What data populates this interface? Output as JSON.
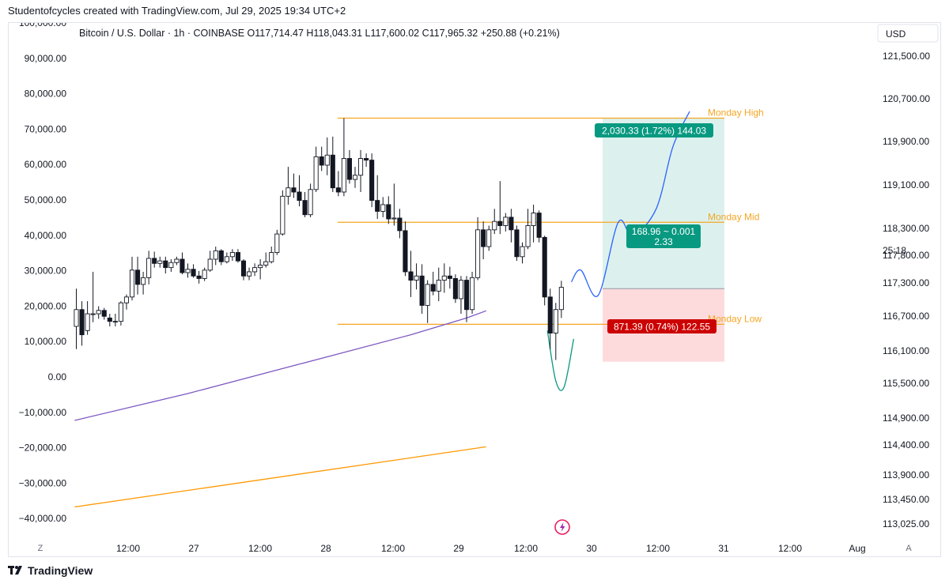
{
  "header": {
    "caption": "Studentofcycles created with TradingView.com, Jul 29, 2025 19:34 UTC+2"
  },
  "footer": {
    "brand": "TradingView"
  },
  "chart_data": {
    "type": "candlestick",
    "symbol_line": "Bitcoin / U.S. Dollar · 1h · COINBASE  O117,714.47  H118,043.31  L117,600.02  C117,965.32  +250.88 (+0.21%)",
    "currency": "USD",
    "countdown": "25:18",
    "left_axis": {
      "ticks": [
        "100,000.00",
        "90,000.00",
        "80,000.00",
        "70,000.00",
        "60,000.00",
        "50,000.00",
        "40,000.00",
        "30,000.00",
        "20,000.00",
        "10,000.00",
        "0.00",
        "−10,000.00",
        "−20,000.00",
        "−30,000.00",
        "−40,000.00"
      ]
    },
    "right_axis": {
      "ticks": [
        "121,500.00",
        "120,700.00",
        "119,900.00",
        "119,100.00",
        "118,300.00",
        "117,800.00",
        "117,300.00",
        "116,700.00",
        "116,100.00",
        "115,500.00",
        "114,900.00",
        "114,400.00",
        "113,900.00",
        "113,450.00",
        "113,025.00"
      ]
    },
    "x_axis": {
      "ticks": [
        "12:00",
        "27",
        "12:00",
        "28",
        "12:00",
        "29",
        "12:00",
        "30",
        "12:00",
        "31",
        "12:00",
        "Aug"
      ],
      "tz_button": "Z",
      "auto_button": "A"
    },
    "levels": [
      {
        "label": "Monday High",
        "price": 119980,
        "color": "#f5a623"
      },
      {
        "label": "Monday Mid",
        "price": 118740,
        "color": "#f5a623"
      },
      {
        "label": "Monday Low",
        "price": 117525,
        "color": "#f5a623"
      }
    ],
    "position": {
      "entry": 117950,
      "target": 119980,
      "stop": 117079,
      "target_label": "2,030.33 (1.72%) 144.03",
      "stop_label": "871.39 (0.74%) 122.55",
      "ratio_label_1": "168.96 ~ 0.001",
      "ratio_label_2": "2.33"
    },
    "candles": [
      {
        "o": 117500,
        "h": 117950,
        "l": 117230,
        "c": 117700
      },
      {
        "o": 117700,
        "h": 117800,
        "l": 117270,
        "c": 117400
      },
      {
        "o": 117450,
        "h": 117800,
        "l": 117400,
        "c": 117650
      },
      {
        "o": 117640,
        "h": 118150,
        "l": 117550,
        "c": 117650
      },
      {
        "o": 117650,
        "h": 117740,
        "l": 117590,
        "c": 117690
      },
      {
        "o": 117690,
        "h": 117720,
        "l": 117580,
        "c": 117620
      },
      {
        "o": 117600,
        "h": 117650,
        "l": 117500,
        "c": 117560
      },
      {
        "o": 117560,
        "h": 117650,
        "l": 117500,
        "c": 117560
      },
      {
        "o": 117560,
        "h": 117800,
        "l": 117510,
        "c": 117780
      },
      {
        "o": 117780,
        "h": 117880,
        "l": 117700,
        "c": 117850
      },
      {
        "o": 117850,
        "h": 118330,
        "l": 117810,
        "c": 118170
      },
      {
        "o": 118170,
        "h": 118330,
        "l": 117880,
        "c": 118000
      },
      {
        "o": 118000,
        "h": 118150,
        "l": 117880,
        "c": 118080
      },
      {
        "o": 118080,
        "h": 118400,
        "l": 118000,
        "c": 118310
      },
      {
        "o": 118310,
        "h": 118390,
        "l": 118200,
        "c": 118250
      },
      {
        "o": 118250,
        "h": 118330,
        "l": 118200,
        "c": 118280
      },
      {
        "o": 118280,
        "h": 118330,
        "l": 118130,
        "c": 118200
      },
      {
        "o": 118200,
        "h": 118300,
        "l": 118150,
        "c": 118260
      },
      {
        "o": 118260,
        "h": 118330,
        "l": 118230,
        "c": 118300
      },
      {
        "o": 118300,
        "h": 118380,
        "l": 118120,
        "c": 118140
      },
      {
        "o": 118140,
        "h": 118250,
        "l": 118080,
        "c": 118180
      },
      {
        "o": 118180,
        "h": 118240,
        "l": 118080,
        "c": 118100
      },
      {
        "o": 118100,
        "h": 118160,
        "l": 118010,
        "c": 118070
      },
      {
        "o": 118070,
        "h": 118200,
        "l": 118040,
        "c": 118170
      },
      {
        "o": 118170,
        "h": 118400,
        "l": 118150,
        "c": 118300
      },
      {
        "o": 118300,
        "h": 118450,
        "l": 118230,
        "c": 118400
      },
      {
        "o": 118400,
        "h": 118420,
        "l": 118230,
        "c": 118270
      },
      {
        "o": 118270,
        "h": 118380,
        "l": 118250,
        "c": 118330
      },
      {
        "o": 118330,
        "h": 118420,
        "l": 118280,
        "c": 118380
      },
      {
        "o": 118380,
        "h": 118420,
        "l": 118260,
        "c": 118280
      },
      {
        "o": 118280,
        "h": 118300,
        "l": 118050,
        "c": 118100
      },
      {
        "o": 118100,
        "h": 118200,
        "l": 118050,
        "c": 118150
      },
      {
        "o": 118150,
        "h": 118250,
        "l": 118100,
        "c": 118200
      },
      {
        "o": 118200,
        "h": 118300,
        "l": 118060,
        "c": 118230
      },
      {
        "o": 118230,
        "h": 118380,
        "l": 118200,
        "c": 118270
      },
      {
        "o": 118270,
        "h": 118450,
        "l": 118250,
        "c": 118380
      },
      {
        "o": 118380,
        "h": 118650,
        "l": 118350,
        "c": 118600
      },
      {
        "o": 118600,
        "h": 119120,
        "l": 118580,
        "c": 119050
      },
      {
        "o": 119050,
        "h": 119400,
        "l": 118950,
        "c": 119150
      },
      {
        "o": 119150,
        "h": 119320,
        "l": 119030,
        "c": 119100
      },
      {
        "o": 119100,
        "h": 119300,
        "l": 118930,
        "c": 119000
      },
      {
        "o": 119000,
        "h": 119100,
        "l": 118800,
        "c": 118830
      },
      {
        "o": 118830,
        "h": 119200,
        "l": 118800,
        "c": 119130
      },
      {
        "o": 119130,
        "h": 119640,
        "l": 119100,
        "c": 119520
      },
      {
        "o": 119520,
        "h": 119640,
        "l": 119350,
        "c": 119420
      },
      {
        "o": 119420,
        "h": 119750,
        "l": 119300,
        "c": 119540
      },
      {
        "o": 119540,
        "h": 119760,
        "l": 119100,
        "c": 119150
      },
      {
        "o": 119150,
        "h": 119350,
        "l": 119050,
        "c": 119100
      },
      {
        "o": 119100,
        "h": 119980,
        "l": 119050,
        "c": 119500
      },
      {
        "o": 119500,
        "h": 119600,
        "l": 119200,
        "c": 119250
      },
      {
        "o": 119250,
        "h": 119400,
        "l": 119150,
        "c": 119300
      },
      {
        "o": 119300,
        "h": 119600,
        "l": 119100,
        "c": 119500
      },
      {
        "o": 119500,
        "h": 119560,
        "l": 119400,
        "c": 119480
      },
      {
        "o": 119480,
        "h": 119560,
        "l": 118920,
        "c": 119000
      },
      {
        "o": 119000,
        "h": 119300,
        "l": 118780,
        "c": 118870
      },
      {
        "o": 118870,
        "h": 119040,
        "l": 118800,
        "c": 118950
      },
      {
        "o": 118950,
        "h": 119050,
        "l": 118720,
        "c": 118780
      },
      {
        "o": 118780,
        "h": 119200,
        "l": 118700,
        "c": 118790
      },
      {
        "o": 118790,
        "h": 118900,
        "l": 118550,
        "c": 118640
      },
      {
        "o": 118640,
        "h": 118750,
        "l": 118100,
        "c": 118150
      },
      {
        "o": 118150,
        "h": 118400,
        "l": 117850,
        "c": 118050
      },
      {
        "o": 118050,
        "h": 118250,
        "l": 117940,
        "c": 118100
      },
      {
        "o": 118100,
        "h": 118240,
        "l": 117650,
        "c": 117750
      },
      {
        "o": 117750,
        "h": 118050,
        "l": 117540,
        "c": 118000
      },
      {
        "o": 118000,
        "h": 118150,
        "l": 117870,
        "c": 117920
      },
      {
        "o": 117920,
        "h": 118200,
        "l": 117800,
        "c": 118050
      },
      {
        "o": 118050,
        "h": 118250,
        "l": 117900,
        "c": 118100
      },
      {
        "o": 118100,
        "h": 118210,
        "l": 117950,
        "c": 118070
      },
      {
        "o": 118070,
        "h": 118120,
        "l": 117780,
        "c": 117830
      },
      {
        "o": 117830,
        "h": 118100,
        "l": 117650,
        "c": 118050
      },
      {
        "o": 118050,
        "h": 118100,
        "l": 117550,
        "c": 117700
      },
      {
        "o": 117700,
        "h": 118150,
        "l": 117650,
        "c": 118080
      },
      {
        "o": 118080,
        "h": 118800,
        "l": 118050,
        "c": 118650
      },
      {
        "o": 118650,
        "h": 118750,
        "l": 118300,
        "c": 118450
      },
      {
        "o": 118450,
        "h": 118700,
        "l": 118400,
        "c": 118650
      },
      {
        "o": 118650,
        "h": 118900,
        "l": 118600,
        "c": 118750
      },
      {
        "o": 118750,
        "h": 119230,
        "l": 118600,
        "c": 118700
      },
      {
        "o": 118700,
        "h": 118850,
        "l": 118630,
        "c": 118800
      },
      {
        "o": 118800,
        "h": 118900,
        "l": 118500,
        "c": 118650
      },
      {
        "o": 118650,
        "h": 118700,
        "l": 118280,
        "c": 118330
      },
      {
        "o": 118330,
        "h": 118500,
        "l": 118250,
        "c": 118450
      },
      {
        "o": 118450,
        "h": 118900,
        "l": 118420,
        "c": 118700
      },
      {
        "o": 118700,
        "h": 118950,
        "l": 118500,
        "c": 118850
      },
      {
        "o": 118850,
        "h": 118880,
        "l": 118500,
        "c": 118560
      },
      {
        "o": 118560,
        "h": 118580,
        "l": 117750,
        "c": 117850
      },
      {
        "o": 117850,
        "h": 117950,
        "l": 117230,
        "c": 117420
      },
      {
        "o": 117420,
        "h": 117780,
        "l": 117100,
        "c": 117700
      },
      {
        "o": 117700,
        "h": 118043,
        "l": 117600,
        "c": 117965
      }
    ],
    "ema_purple": [
      {
        "i": -0.3,
        "p": 116380
      },
      {
        "i": 20,
        "p": 116700
      },
      {
        "i": 40,
        "p": 117050
      },
      {
        "i": 60,
        "p": 117400
      },
      {
        "i": 70,
        "p": 117600
      },
      {
        "i": 73.5,
        "p": 117685
      }
    ],
    "orange_line_left_axis": [
      {
        "i": -0.3,
        "v": -36500
      },
      {
        "i": 73.5,
        "v": -19500
      }
    ],
    "projection_down": [
      {
        "i": 84.5,
        "p": 117450
      },
      {
        "i": 86,
        "p": 116850
      },
      {
        "i": 87.5,
        "p": 116780
      },
      {
        "i": 89.2,
        "p": 117350
      }
    ],
    "projection_up": [
      {
        "i": 88.8,
        "p": 118030
      },
      {
        "i": 90.5,
        "p": 118170
      },
      {
        "i": 93.6,
        "p": 117870
      },
      {
        "i": 97.2,
        "p": 118740
      },
      {
        "i": 99.8,
        "p": 118580
      },
      {
        "i": 104,
        "p": 118900
      },
      {
        "i": 107,
        "p": 119640
      },
      {
        "i": 110,
        "p": 120060
      }
    ]
  }
}
